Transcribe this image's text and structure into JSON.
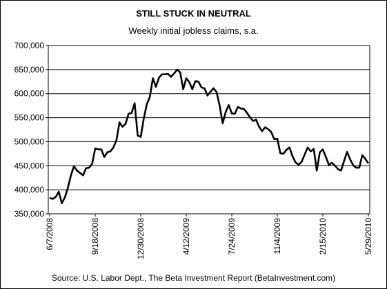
{
  "chart_data": {
    "type": "line",
    "title": "STILL STUCK IN NEUTRAL",
    "subtitle": "Weekly initial jobless claims, s.a.",
    "source": "Source: U.S. Labor Dept., The Beta Investment Report (BetaInvestment.com)",
    "xlabel": "",
    "ylabel": "",
    "ylim": [
      350000,
      700000
    ],
    "grid": true,
    "y_ticks": [
      "350,000",
      "400,000",
      "450,000",
      "500,000",
      "550,000",
      "600,000",
      "650,000",
      "700,000"
    ],
    "x_ticks": [
      "6/7/2008",
      "9/18/2008",
      "12/30/2008",
      "4/12/2009",
      "7/24/2009",
      "11/4/2009",
      "2/15/2010",
      "5/29/2010"
    ],
    "series": [
      {
        "color": "#000000",
        "values": [
          383000,
          381000,
          385000,
          396000,
          372000,
          384000,
          404000,
          430000,
          449000,
          440000,
          435000,
          430000,
          445000,
          446000,
          454000,
          486000,
          484000,
          484000,
          468000,
          478000,
          480000,
          488000,
          503000,
          540000,
          531000,
          537000,
          558000,
          560000,
          580000,
          513000,
          510000,
          548000,
          578000,
          593000,
          632000,
          614000,
          633000,
          640000,
          640000,
          641000,
          635000,
          642000,
          650000,
          644000,
          609000,
          632000,
          624000,
          609000,
          626000,
          625000,
          613000,
          611000,
          596000,
          604000,
          611000,
          603000,
          575000,
          538000,
          562000,
          576000,
          559000,
          558000,
          572000,
          569000,
          568000,
          560000,
          551000,
          543000,
          546000,
          531000,
          522000,
          530000,
          526000,
          520000,
          505000,
          506000,
          476000,
          475000,
          483000,
          488000,
          470000,
          457000,
          452000,
          458000,
          473000,
          488000,
          480000,
          485000,
          440000,
          478000,
          484000,
          468000,
          452000,
          456000,
          450000,
          443000,
          440000,
          460000,
          479000,
          463000,
          451000,
          446000,
          446000,
          472000,
          464000,
          455000
        ]
      }
    ]
  }
}
